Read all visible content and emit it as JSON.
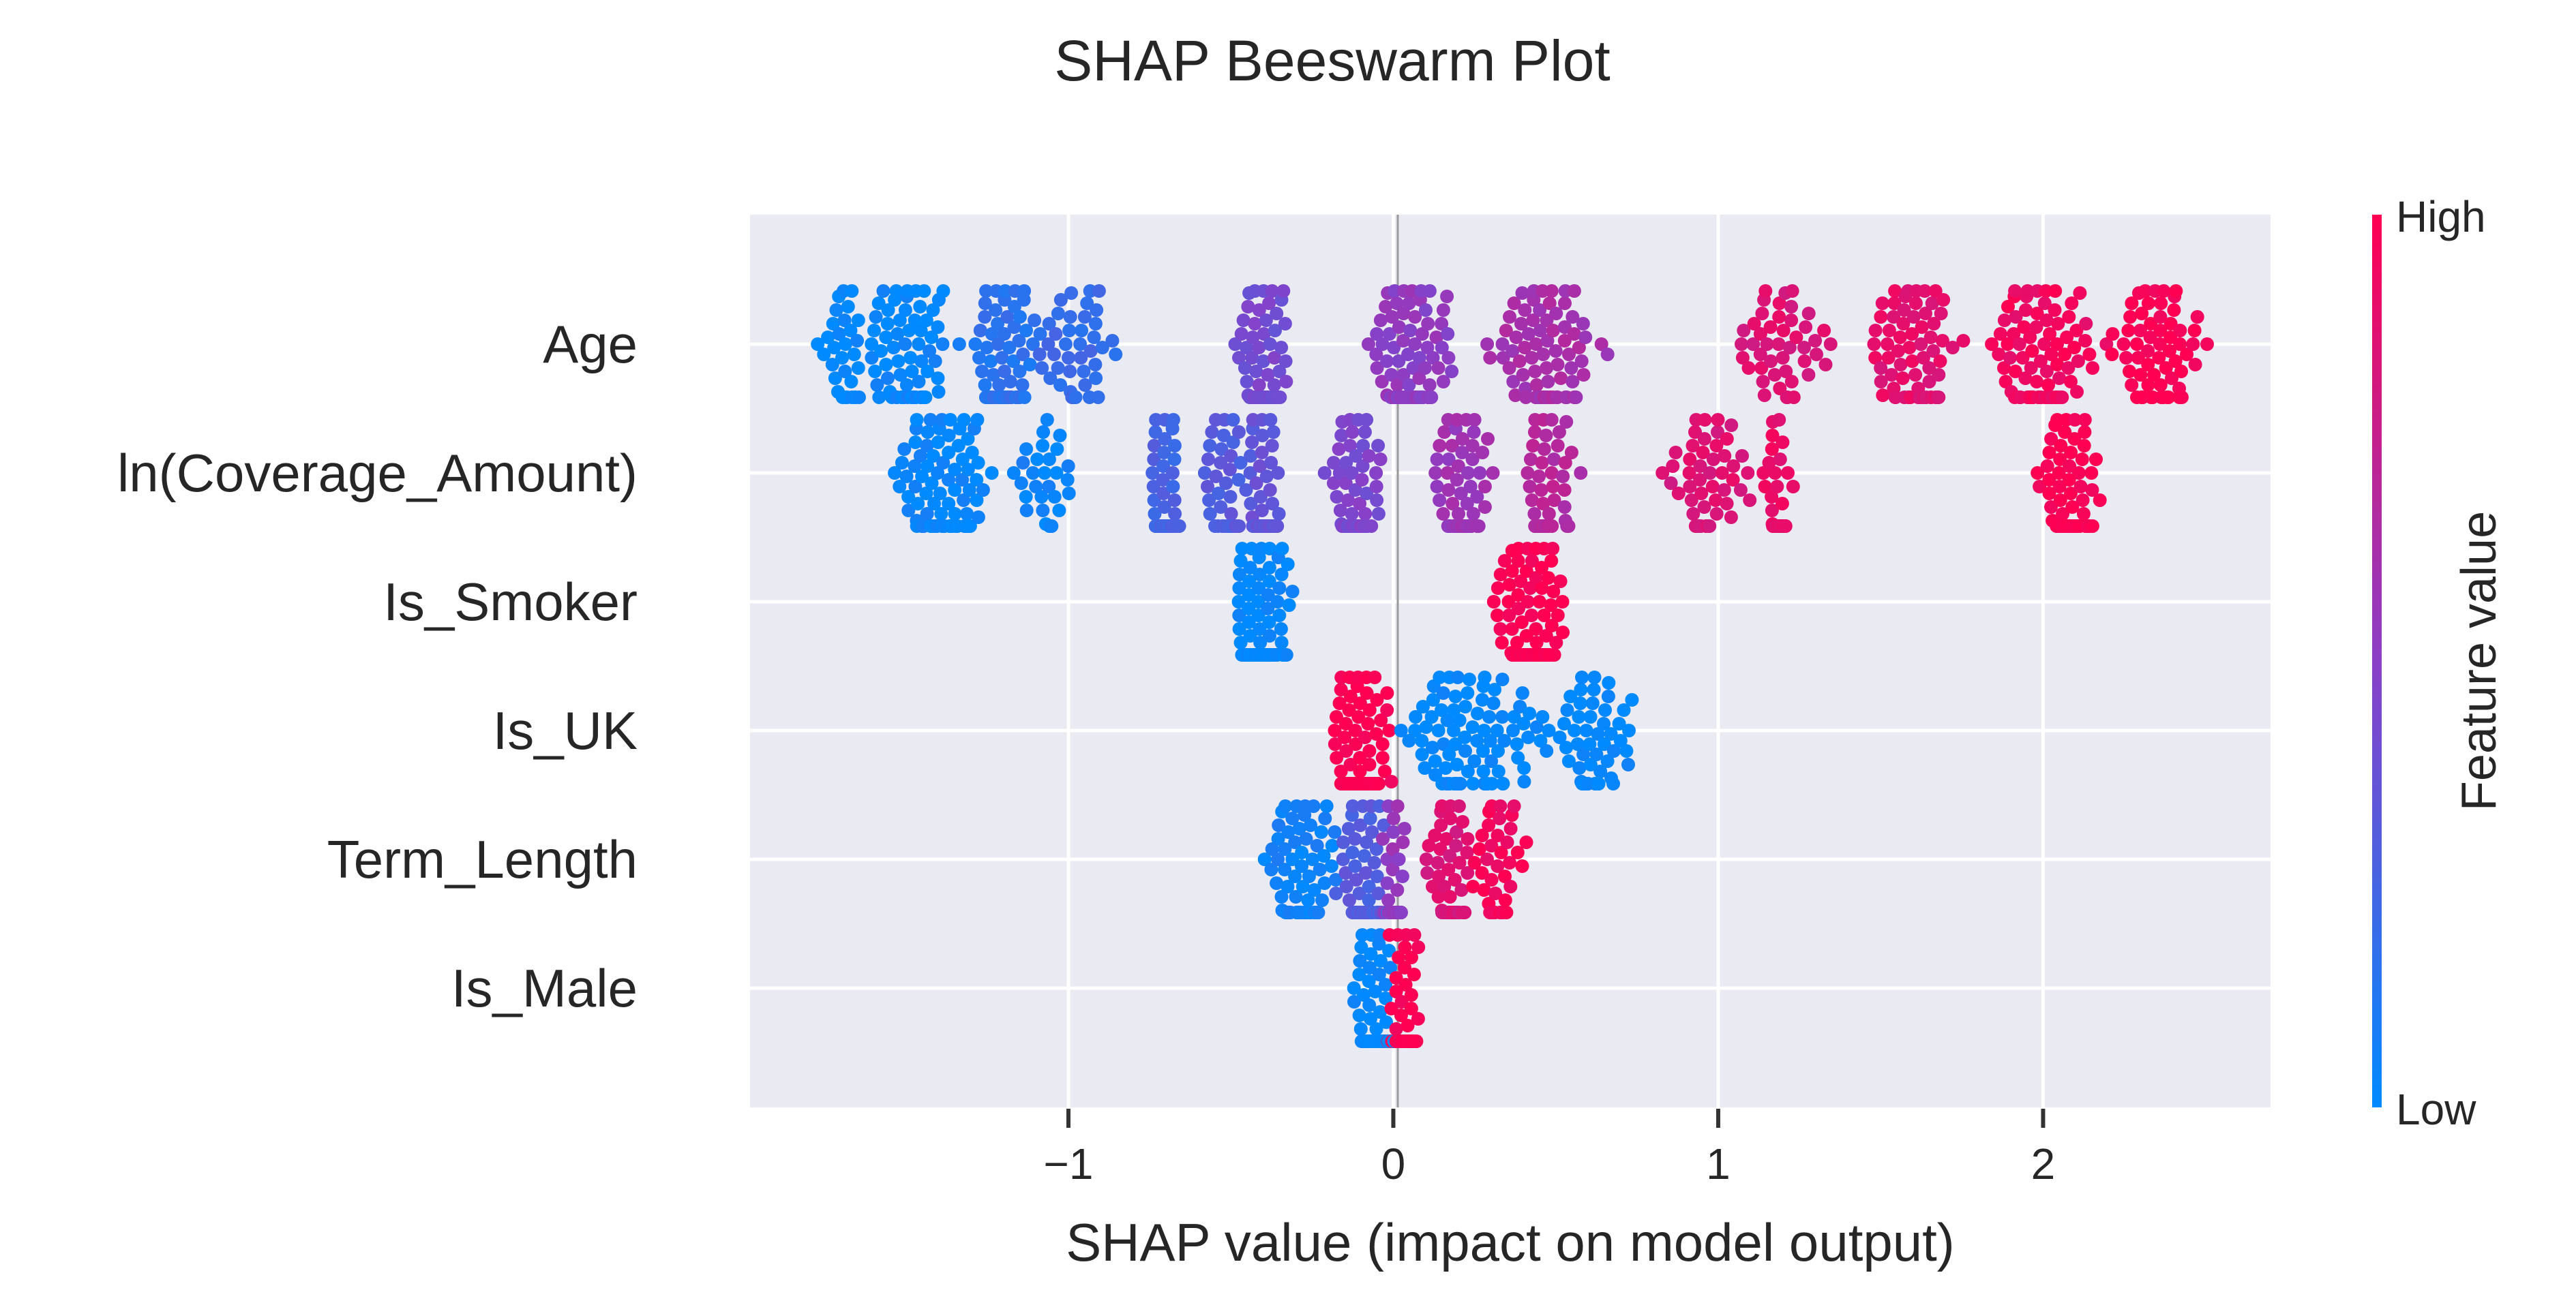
{
  "chart_data": {
    "type": "scatter",
    "subtype": "beeswarm",
    "title": "SHAP Beeswarm Plot",
    "xlabel": "SHAP value (impact on model output)",
    "ylabel": "",
    "xlim": [
      -1.98,
      2.7
    ],
    "xticks": [
      -1,
      0,
      1,
      2
    ],
    "xtick_labels": [
      "−1",
      "0",
      "1",
      "2"
    ],
    "grid": true,
    "background_color": "#EAEAF2",
    "colorbar": {
      "label": "Feature value",
      "high_label": "High",
      "low_label": "Low",
      "low_color": "#008AFF",
      "mid_color": "#8A3FC7",
      "high_color": "#FF0052"
    },
    "features": [
      {
        "name": "Age",
        "clusters": [
          {
            "x": -1.7,
            "spread": 0.08,
            "n": 30,
            "v": 0.0
          },
          {
            "x": -1.5,
            "spread": 0.13,
            "n": 80,
            "v": 0.02
          },
          {
            "x": -1.2,
            "spread": 0.07,
            "n": 95,
            "v": 0.15
          },
          {
            "x": -0.98,
            "spread": 0.11,
            "n": 45,
            "v": 0.2
          },
          {
            "x": -0.4,
            "spread": 0.06,
            "n": 110,
            "v": 0.42
          },
          {
            "x": 0.05,
            "spread": 0.1,
            "n": 120,
            "v": 0.52
          },
          {
            "x": 0.45,
            "spread": 0.14,
            "n": 90,
            "v": 0.62
          },
          {
            "x": 1.2,
            "spread": 0.14,
            "n": 45,
            "v": 0.85
          },
          {
            "x": 1.6,
            "spread": 0.12,
            "n": 70,
            "v": 0.88
          },
          {
            "x": 2.0,
            "spread": 0.12,
            "n": 95,
            "v": 0.94
          },
          {
            "x": 2.35,
            "spread": 0.1,
            "n": 70,
            "v": 1.0
          }
        ]
      },
      {
        "name": "ln(Coverage_Amount)",
        "clusters": [
          {
            "x": -1.38,
            "spread": 0.12,
            "n": 95,
            "v": 0.02
          },
          {
            "x": -1.08,
            "spread": 0.08,
            "n": 30,
            "v": 0.04
          },
          {
            "x": -0.7,
            "spread": 0.04,
            "n": 70,
            "v": 0.25
          },
          {
            "x": -0.52,
            "spread": 0.06,
            "n": 45,
            "v": 0.3
          },
          {
            "x": -0.4,
            "spread": 0.04,
            "n": 70,
            "v": 0.35
          },
          {
            "x": -0.12,
            "spread": 0.06,
            "n": 90,
            "v": 0.45
          },
          {
            "x": 0.22,
            "spread": 0.07,
            "n": 75,
            "v": 0.58
          },
          {
            "x": 0.48,
            "spread": 0.06,
            "n": 60,
            "v": 0.68
          },
          {
            "x": 0.97,
            "spread": 0.13,
            "n": 50,
            "v": 0.85
          },
          {
            "x": 1.18,
            "spread": 0.03,
            "n": 60,
            "v": 0.9
          },
          {
            "x": 2.08,
            "spread": 0.07,
            "n": 85,
            "v": 1.0
          }
        ]
      },
      {
        "name": "Is_Smoker",
        "clusters": [
          {
            "x": -0.4,
            "spread": 0.07,
            "n": 170,
            "v": 0.0
          },
          {
            "x": 0.42,
            "spread": 0.08,
            "n": 170,
            "v": 1.0
          }
        ]
      },
      {
        "name": "Is_UK",
        "clusters": [
          {
            "x": -0.1,
            "spread": 0.06,
            "n": 260,
            "v": 1.0
          },
          {
            "x": 0.25,
            "spread": 0.2,
            "n": 90,
            "v": 0.0
          },
          {
            "x": 0.62,
            "spread": 0.12,
            "n": 55,
            "v": 0.0
          }
        ]
      },
      {
        "name": "Term_Length",
        "clusters": [
          {
            "x": -0.28,
            "spread": 0.09,
            "n": 85,
            "v": 0.05
          },
          {
            "x": -0.09,
            "spread": 0.06,
            "n": 70,
            "v": 0.3
          },
          {
            "x": 0.0,
            "spread": 0.03,
            "n": 50,
            "v": 0.55
          },
          {
            "x": 0.17,
            "spread": 0.06,
            "n": 60,
            "v": 0.85
          },
          {
            "x": 0.32,
            "spread": 0.06,
            "n": 45,
            "v": 0.95
          }
        ]
      },
      {
        "name": "Is_Male",
        "clusters": [
          {
            "x": -0.06,
            "spread": 0.05,
            "n": 90,
            "v": 0.0
          },
          {
            "x": 0.03,
            "spread": 0.04,
            "n": 90,
            "v": 1.0
          }
        ]
      }
    ]
  }
}
